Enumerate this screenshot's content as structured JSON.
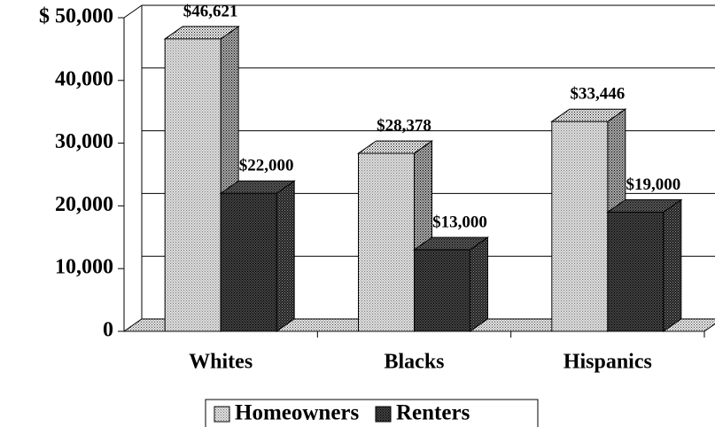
{
  "chart_data": {
    "type": "bar3d",
    "categories": [
      "Whites",
      "Blacks",
      "Hispanics"
    ],
    "series": [
      {
        "name": "Homeowners",
        "color": "#e0e0e0",
        "values": [
          46621,
          28378,
          33446
        ],
        "value_labels": [
          "$46,621",
          "$28,378",
          "$33,446"
        ]
      },
      {
        "name": "Renters",
        "color": "#404040",
        "values": [
          22000,
          13000,
          19000
        ],
        "value_labels": [
          "$22,000",
          "$13,000",
          "$19,000"
        ]
      }
    ],
    "ylim": [
      0,
      50000
    ],
    "yticks": [
      0,
      {
        "value": 10000,
        "label": "10,000"
      },
      {
        "value": 20000,
        "label": "20,000"
      },
      {
        "value": 30000,
        "label": "30,000"
      },
      {
        "value": 40000,
        "label": "40,000"
      },
      {
        "value": 50000,
        "label": "$ 50,000"
      }
    ],
    "grid": true,
    "legend": "bottom"
  }
}
